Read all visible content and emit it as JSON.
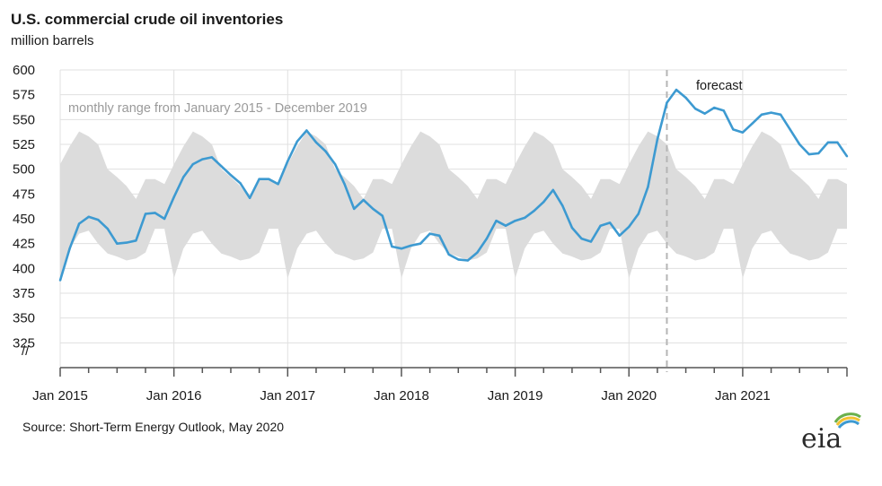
{
  "header": {
    "title": "U.S. commercial crude oil inventories",
    "subtitle": "million barrels"
  },
  "footer": {
    "source": "Short-Term Energy Outlook, May 2020",
    "logo_text": "eia"
  },
  "colors": {
    "series": "#3d9ad1",
    "range_band": "#dcdcdc",
    "grid": "#e0e0e0",
    "forecast_line": "#b5b5b5",
    "axis": "#555555",
    "logo_accent_green": "#6ab04c",
    "logo_accent_yellow": "#f2c230",
    "logo_accent_blue": "#3d9ad1"
  },
  "chart_data": {
    "type": "line",
    "title": "U.S. commercial crude oil inventories",
    "ylabel": "million barrels",
    "xlabel": "",
    "ylim": [
      300,
      600
    ],
    "y_ticks": [
      600,
      575,
      550,
      525,
      500,
      475,
      450,
      425,
      400,
      375,
      350,
      325
    ],
    "y_break_label": "//",
    "x_range": [
      "2015-01",
      "2021-12"
    ],
    "x_tick_labels": [
      {
        "date": "2015-01",
        "label": "Jan 2015"
      },
      {
        "date": "2016-01",
        "label": "Jan 2016"
      },
      {
        "date": "2017-01",
        "label": "Jan 2017"
      },
      {
        "date": "2018-01",
        "label": "Jan 2018"
      },
      {
        "date": "2019-01",
        "label": "Jan 2019"
      },
      {
        "date": "2020-01",
        "label": "Jan 2020"
      },
      {
        "date": "2021-01",
        "label": "Jan 2021"
      }
    ],
    "grid": true,
    "forecast_start": "2020-05",
    "annotations": {
      "range_label": "monthly range from January 2015 - December 2019",
      "forecast_label": "forecast"
    },
    "range_band": {
      "months": [
        "Jan",
        "Feb",
        "Mar",
        "Apr",
        "May",
        "Jun",
        "Jul",
        "Aug",
        "Sep",
        "Oct",
        "Nov",
        "Dec"
      ],
      "upper": [
        505,
        523,
        538,
        533,
        525,
        500,
        492,
        483,
        470,
        490,
        490,
        485
      ],
      "lower": [
        390,
        420,
        435,
        438,
        425,
        415,
        412,
        408,
        410,
        416,
        440,
        440
      ]
    },
    "series": [
      {
        "x": [
          "2015-01",
          "2015-02",
          "2015-03",
          "2015-04",
          "2015-05",
          "2015-06",
          "2015-07",
          "2015-08",
          "2015-09",
          "2015-10",
          "2015-11",
          "2015-12",
          "2016-01",
          "2016-02",
          "2016-03",
          "2016-04",
          "2016-05",
          "2016-06",
          "2016-07",
          "2016-08",
          "2016-09",
          "2016-10",
          "2016-11",
          "2016-12",
          "2017-01",
          "2017-02",
          "2017-03",
          "2017-04",
          "2017-05",
          "2017-06",
          "2017-07",
          "2017-08",
          "2017-09",
          "2017-10",
          "2017-11",
          "2017-12",
          "2018-01",
          "2018-02",
          "2018-03",
          "2018-04",
          "2018-05",
          "2018-06",
          "2018-07",
          "2018-08",
          "2018-09",
          "2018-10",
          "2018-11",
          "2018-12",
          "2019-01",
          "2019-02",
          "2019-03",
          "2019-04",
          "2019-05",
          "2019-06",
          "2019-07",
          "2019-08",
          "2019-09",
          "2019-10",
          "2019-11",
          "2019-12",
          "2020-01",
          "2020-02",
          "2020-03",
          "2020-04",
          "2020-05",
          "2020-06",
          "2020-07",
          "2020-08",
          "2020-09",
          "2020-10",
          "2020-11",
          "2020-12",
          "2021-01",
          "2021-02",
          "2021-03",
          "2021-04",
          "2021-05",
          "2021-06",
          "2021-07",
          "2021-08",
          "2021-09",
          "2021-10",
          "2021-11",
          "2021-12"
        ],
        "values": [
          388,
          420,
          445,
          452,
          449,
          440,
          425,
          426,
          428,
          455,
          456,
          450,
          472,
          492,
          505,
          510,
          512,
          503,
          494,
          486,
          471,
          490,
          490,
          485,
          508,
          528,
          539,
          527,
          518,
          505,
          485,
          460,
          469,
          460,
          453,
          422,
          420,
          423,
          425,
          435,
          433,
          414,
          409,
          408,
          416,
          430,
          448,
          443,
          448,
          451,
          458,
          467,
          479,
          463,
          441,
          430,
          427,
          443,
          446,
          433,
          442,
          455,
          482,
          530,
          567,
          580,
          572,
          561,
          556,
          562,
          559,
          540,
          537,
          546,
          555,
          557,
          555,
          540,
          525,
          515,
          516,
          527,
          527,
          513
        ]
      }
    ]
  }
}
